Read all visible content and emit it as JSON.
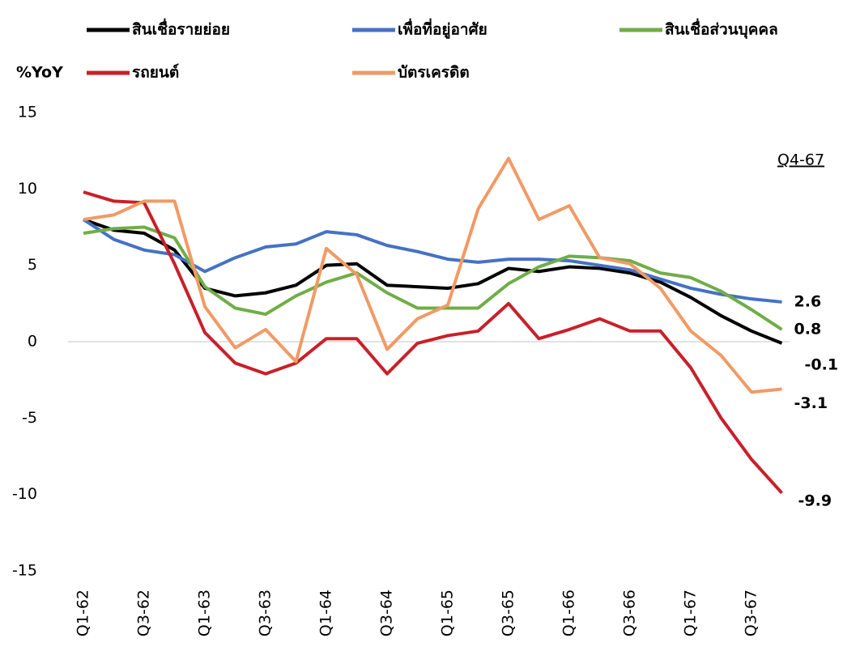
{
  "chart_data": {
    "type": "line",
    "y_label": "%YoY",
    "annotation": "Q4-67",
    "categories": [
      "Q1-62",
      null,
      "Q3-62",
      null,
      "Q1-63",
      null,
      "Q3-63",
      null,
      "Q1-64",
      null,
      "Q3-64",
      null,
      "Q1-65",
      null,
      "Q3-65",
      null,
      "Q1-66",
      null,
      "Q3-66",
      null,
      "Q1-67",
      null,
      "Q3-67",
      null
    ],
    "series": [
      {
        "name": "สินเชื่อรายย่อย",
        "color": "#000000",
        "values": [
          8.0,
          7.3,
          7.1,
          6.0,
          3.5,
          3.0,
          3.2,
          3.7,
          5.0,
          5.1,
          3.7,
          3.6,
          3.5,
          3.8,
          4.8,
          4.6,
          4.9,
          4.8,
          4.5,
          3.9,
          2.9,
          1.7,
          0.7,
          -0.1
        ]
      },
      {
        "name": "เพื่อที่อยู่อาศัย",
        "color": "#4472c4",
        "values": [
          8.0,
          6.7,
          6.0,
          5.7,
          4.6,
          5.5,
          6.2,
          6.4,
          7.2,
          7.0,
          6.3,
          5.9,
          5.4,
          5.2,
          5.4,
          5.4,
          5.3,
          5.0,
          4.7,
          4.1,
          3.5,
          3.1,
          2.8,
          2.6
        ]
      },
      {
        "name": "สินเชื่อส่วนบุคคล",
        "color": "#70ad47",
        "values": [
          7.1,
          7.4,
          7.5,
          6.8,
          3.6,
          2.2,
          1.8,
          3.0,
          3.9,
          4.5,
          3.2,
          2.2,
          2.2,
          2.2,
          3.8,
          4.9,
          5.6,
          5.5,
          5.3,
          4.5,
          4.2,
          3.3,
          2.1,
          0.8
        ]
      },
      {
        "name": "รถยนต์",
        "color": "#c8202a",
        "values": [
          9.8,
          9.2,
          9.1,
          5.1,
          0.6,
          -1.4,
          -2.1,
          -1.4,
          0.2,
          0.2,
          -2.1,
          -0.1,
          0.4,
          0.7,
          2.5,
          0.2,
          0.8,
          1.5,
          0.7,
          0.7,
          -1.7,
          -5.0,
          -7.7,
          -9.9
        ]
      },
      {
        "name": "บัตรเครดิต",
        "color": "#f19a65",
        "values": [
          8.0,
          8.3,
          9.2,
          9.2,
          2.3,
          -0.4,
          0.8,
          -1.3,
          6.1,
          4.4,
          -0.5,
          1.5,
          2.4,
          8.7,
          12.0,
          8.0,
          8.9,
          5.5,
          5.1,
          3.5,
          0.7,
          -0.9,
          -3.3,
          -3.1
        ]
      }
    ],
    "ylim": [
      -15,
      15
    ],
    "yticks": [
      15,
      10,
      5,
      0,
      -5,
      -10,
      -15
    ],
    "grid": false,
    "legend": "top"
  }
}
